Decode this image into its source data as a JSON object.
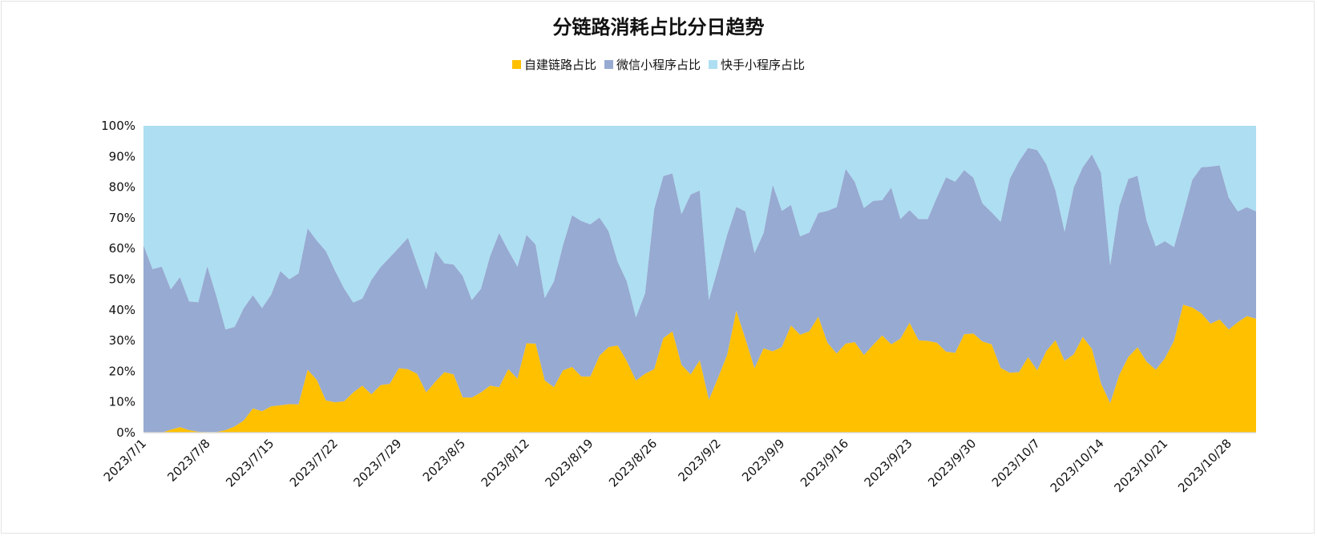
{
  "chart_data": {
    "type": "area",
    "stacked": "percent",
    "title": "分链路消耗占比分日趋势",
    "legend_position": "top",
    "grid": false,
    "ylim": [
      0,
      100
    ],
    "y_ticks": [
      "0%",
      "10%",
      "20%",
      "30%",
      "40%",
      "50%",
      "60%",
      "70%",
      "80%",
      "90%",
      "100%"
    ],
    "x_ticks": [
      "2023/7/1",
      "2023/7/8",
      "2023/7/15",
      "2023/7/22",
      "2023/7/29",
      "2023/8/5",
      "2023/8/12",
      "2023/8/19",
      "2023/8/26",
      "2023/9/2",
      "2023/9/9",
      "2023/9/16",
      "2023/9/23",
      "2023/9/30",
      "2023/10/7",
      "2023/10/14",
      "2023/10/21",
      "2023/10/28"
    ],
    "categories": [
      "2023/7/1",
      "2023/7/2",
      "2023/7/3",
      "2023/7/4",
      "2023/7/5",
      "2023/7/6",
      "2023/7/7",
      "2023/7/8",
      "2023/7/9",
      "2023/7/10",
      "2023/7/11",
      "2023/7/12",
      "2023/7/13",
      "2023/7/14",
      "2023/7/15",
      "2023/7/16",
      "2023/7/17",
      "2023/7/18",
      "2023/7/19",
      "2023/7/20",
      "2023/7/21",
      "2023/7/22",
      "2023/7/23",
      "2023/7/24",
      "2023/7/25",
      "2023/7/26",
      "2023/7/27",
      "2023/7/28",
      "2023/7/29",
      "2023/7/30",
      "2023/7/31",
      "2023/8/1",
      "2023/8/2",
      "2023/8/3",
      "2023/8/4",
      "2023/8/5",
      "2023/8/6",
      "2023/8/7",
      "2023/8/8",
      "2023/8/9",
      "2023/8/10",
      "2023/8/11",
      "2023/8/12",
      "2023/8/13",
      "2023/8/14",
      "2023/8/15",
      "2023/8/16",
      "2023/8/17",
      "2023/8/18",
      "2023/8/19",
      "2023/8/20",
      "2023/8/21",
      "2023/8/22",
      "2023/8/23",
      "2023/8/24",
      "2023/8/25",
      "2023/8/26",
      "2023/8/27",
      "2023/8/28",
      "2023/8/29",
      "2023/8/30",
      "2023/8/31",
      "2023/9/1",
      "2023/9/2",
      "2023/9/3",
      "2023/9/4",
      "2023/9/5",
      "2023/9/6",
      "2023/9/7",
      "2023/9/8",
      "2023/9/9",
      "2023/9/10",
      "2023/9/11",
      "2023/9/12",
      "2023/9/13",
      "2023/9/14",
      "2023/9/15",
      "2023/9/16",
      "2023/9/17",
      "2023/9/18",
      "2023/9/19",
      "2023/9/20",
      "2023/9/21",
      "2023/9/22",
      "2023/9/23",
      "2023/9/24",
      "2023/9/25",
      "2023/9/26",
      "2023/9/27",
      "2023/9/28",
      "2023/9/29",
      "2023/9/30",
      "2023/10/1",
      "2023/10/2",
      "2023/10/3",
      "2023/10/4",
      "2023/10/5",
      "2023/10/6",
      "2023/10/7",
      "2023/10/8",
      "2023/10/9",
      "2023/10/10",
      "2023/10/11",
      "2023/10/12",
      "2023/10/13",
      "2023/10/14",
      "2023/10/15",
      "2023/10/16",
      "2023/10/17",
      "2023/10/18",
      "2023/10/19",
      "2023/10/20",
      "2023/10/21",
      "2023/10/22",
      "2023/10/23",
      "2023/10/24",
      "2023/10/25",
      "2023/10/26",
      "2023/10/27",
      "2023/10/28",
      "2023/10/29",
      "2023/10/30",
      "2023/10/31"
    ],
    "series": [
      {
        "name": "自建链路占比",
        "color": "#FFC000",
        "values": [
          0,
          0,
          0,
          1.0,
          1.8,
          0.8,
          0.3,
          0.2,
          0.2,
          0.8,
          2.0,
          4.0,
          7.9,
          7.0,
          8.6,
          8.9,
          9.3,
          9.2,
          20.5,
          17.2,
          10.5,
          9.9,
          10.2,
          13.1,
          15.3,
          12.5,
          15.5,
          15.9,
          21.0,
          20.7,
          19.2,
          13.1,
          16.6,
          19.7,
          19.0,
          11.5,
          11.4,
          13.1,
          15.3,
          14.8,
          20.7,
          17.6,
          29.1,
          29.0,
          17.0,
          14.8,
          20.3,
          21.4,
          18.3,
          18.3,
          25.1,
          27.9,
          28.4,
          23.3,
          17.0,
          19.2,
          20.7,
          30.8,
          33.0,
          22.1,
          19.0,
          23.6,
          10.7,
          17.9,
          25.3,
          39.7,
          30.6,
          21.0,
          27.5,
          26.5,
          27.9,
          34.9,
          31.9,
          33.0,
          37.8,
          29.3,
          25.8,
          29.0,
          29.5,
          25.3,
          28.6,
          31.7,
          28.8,
          30.6,
          35.8,
          30.1,
          29.9,
          29.3,
          26.4,
          26.0,
          32.1,
          32.3,
          29.7,
          28.8,
          21.1,
          19.5,
          19.7,
          24.6,
          20.3,
          26.6,
          30.1,
          23.4,
          25.5,
          31.2,
          27.3,
          16.0,
          9.6,
          18.8,
          24.7,
          27.8,
          23.1,
          20.5,
          24.2,
          29.9,
          41.7,
          40.8,
          38.9,
          35.5,
          36.9,
          33.6,
          36.0,
          38.0,
          37.1
        ]
      },
      {
        "name": "微信小程序占比",
        "color": "#97AAD1",
        "values": [
          61.1,
          53.3,
          54.1,
          45.7,
          48.9,
          42.0,
          42.2,
          54.1,
          44.3,
          32.8,
          32.5,
          36.6,
          36.9,
          33.6,
          36.4,
          43.8,
          40.7,
          42.7,
          46.1,
          45.4,
          48.7,
          42.9,
          36.8,
          29.3,
          28.4,
          37.3,
          38.5,
          41.2,
          39.3,
          42.8,
          35.8,
          33.6,
          42.6,
          35.5,
          35.8,
          39.6,
          31.8,
          33.8,
          42.2,
          50.3,
          38.7,
          36.5,
          35.4,
          32.3,
          26.9,
          34.5,
          40.8,
          49.5,
          50.7,
          49.6,
          45.0,
          37.8,
          27.3,
          26.0,
          20.6,
          26.2,
          52.2,
          52.8,
          51.5,
          49.1,
          58.6,
          55.3,
          32.5,
          35.8,
          39.2,
          33.9,
          41.5,
          37.5,
          37.6,
          54.3,
          44.4,
          39.3,
          32.1,
          32.2,
          33.8,
          43.0,
          47.7,
          57.0,
          52.2,
          47.9,
          46.9,
          44.1,
          51.1,
          39.0,
          36.7,
          39.5,
          39.7,
          47.4,
          56.8,
          55.8,
          53.5,
          50.8,
          45.0,
          43.0,
          47.6,
          63.3,
          68.7,
          68.2,
          71.8,
          60.9,
          48.9,
          42.1,
          54.4,
          55.3,
          63.4,
          68.7,
          45.0,
          55.0,
          58.0,
          55.9,
          45.9,
          40.2,
          38.2,
          30.6,
          29.5,
          41.6,
          47.6,
          51.2,
          50.2,
          43.0,
          36.1,
          35.5,
          35.0
        ]
      },
      {
        "name": "快手小程序占比",
        "color": "#ADDEF2",
        "values": [
          38.9,
          46.7,
          45.9,
          53.3,
          49.3,
          57.2,
          57.5,
          45.7,
          55.5,
          66.4,
          65.5,
          59.4,
          55.2,
          59.4,
          55.0,
          47.3,
          50.0,
          48.1,
          33.4,
          37.4,
          40.8,
          47.2,
          53.0,
          57.6,
          56.3,
          50.2,
          46.0,
          42.9,
          39.7,
          36.5,
          45.0,
          53.3,
          40.8,
          44.8,
          45.2,
          48.9,
          56.8,
          53.1,
          42.5,
          34.9,
          40.6,
          45.9,
          35.5,
          38.7,
          56.1,
          50.7,
          38.9,
          29.1,
          31.0,
          32.1,
          29.9,
          34.3,
          44.3,
          50.7,
          62.4,
          54.6,
          27.1,
          16.4,
          15.5,
          28.8,
          22.4,
          21.1,
          56.8,
          46.3,
          35.5,
          26.4,
          27.9,
          41.5,
          34.9,
          19.2,
          27.7,
          25.8,
          36.0,
          34.8,
          28.4,
          27.7,
          26.5,
          14.0,
          18.3,
          26.8,
          24.5,
          24.2,
          20.1,
          30.4,
          27.5,
          30.4,
          30.4,
          23.3,
          16.8,
          18.2,
          14.4,
          16.9,
          25.3,
          28.2,
          31.3,
          17.2,
          11.6,
          7.2,
          7.9,
          12.5,
          21.0,
          34.5,
          20.1,
          13.5,
          9.3,
          15.3,
          45.4,
          26.2,
          17.3,
          16.3,
          31.0,
          39.3,
          37.6,
          39.5,
          28.8,
          17.6,
          13.5,
          13.3,
          12.9,
          23.4,
          27.9,
          26.5,
          27.9
        ]
      }
    ]
  }
}
